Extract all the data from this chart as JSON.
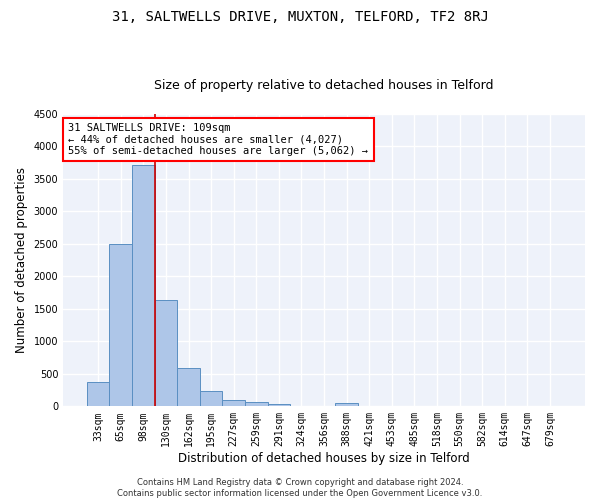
{
  "title_line1": "31, SALTWELLS DRIVE, MUXTON, TELFORD, TF2 8RJ",
  "title_line2": "Size of property relative to detached houses in Telford",
  "xlabel": "Distribution of detached houses by size in Telford",
  "ylabel": "Number of detached properties",
  "footer_line1": "Contains HM Land Registry data © Crown copyright and database right 2024.",
  "footer_line2": "Contains public sector information licensed under the Open Government Licence v3.0.",
  "categories": [
    "33sqm",
    "65sqm",
    "98sqm",
    "130sqm",
    "162sqm",
    "195sqm",
    "227sqm",
    "259sqm",
    "291sqm",
    "324sqm",
    "356sqm",
    "388sqm",
    "421sqm",
    "453sqm",
    "485sqm",
    "518sqm",
    "550sqm",
    "582sqm",
    "614sqm",
    "647sqm",
    "679sqm"
  ],
  "values": [
    370,
    2500,
    3720,
    1630,
    585,
    230,
    105,
    65,
    40,
    0,
    0,
    55,
    0,
    0,
    0,
    0,
    0,
    0,
    0,
    0,
    0
  ],
  "bar_color": "#aec6e8",
  "bar_edge_color": "#5a8fc2",
  "ylim": [
    0,
    4500
  ],
  "yticks": [
    0,
    500,
    1000,
    1500,
    2000,
    2500,
    3000,
    3500,
    4000,
    4500
  ],
  "property_label": "31 SALTWELLS DRIVE: 109sqm",
  "annotation_line2": "← 44% of detached houses are smaller (4,027)",
  "annotation_line3": "55% of semi-detached houses are larger (5,062) →",
  "vline_position": 2.5,
  "vline_color": "#cc0000",
  "background_color": "#eef2fa",
  "grid_color": "#ffffff",
  "title_fontsize": 10,
  "subtitle_fontsize": 9,
  "axis_label_fontsize": 8.5,
  "tick_fontsize": 7,
  "annotation_fontsize": 7.5,
  "footer_fontsize": 6
}
